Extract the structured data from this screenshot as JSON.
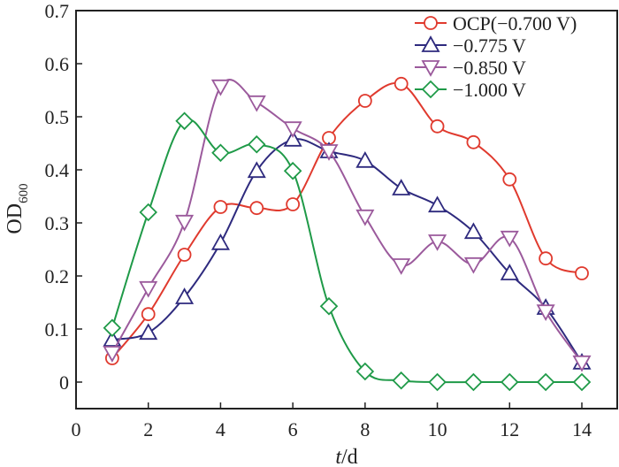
{
  "chart_data": {
    "type": "line",
    "title": "",
    "xlabel": "t/d",
    "xlabel_italic": "t",
    "xlabel_rest": "/d",
    "ylabel": "OD600",
    "ylabel_main": "OD",
    "ylabel_sub": "600",
    "xlim": [
      0,
      15
    ],
    "ylim": [
      -0.05,
      0.7
    ],
    "xticks": [
      0,
      2,
      4,
      6,
      8,
      10,
      12,
      14
    ],
    "xtick_labels": [
      "0",
      "2",
      "4",
      "6",
      "8",
      "10",
      "12",
      "14"
    ],
    "yticks": [
      0,
      0.1,
      0.2,
      0.3,
      0.4,
      0.5,
      0.6,
      0.7
    ],
    "ytick_labels": [
      "0",
      "0.1",
      "0.2",
      "0.3",
      "0.4",
      "0.5",
      "0.6",
      "0.7"
    ],
    "grid": false,
    "legend_position": "top-right",
    "x": [
      1,
      2,
      3,
      4,
      5,
      6,
      7,
      8,
      9,
      10,
      11,
      12,
      13,
      14
    ],
    "series": [
      {
        "name": "OCP(−0.700 V)",
        "marker": "circle",
        "color": "#e03a2e",
        "values": [
          0.045,
          0.128,
          0.24,
          0.33,
          0.328,
          0.335,
          0.46,
          0.53,
          0.562,
          0.482,
          0.452,
          0.382,
          0.233,
          0.205
        ]
      },
      {
        "name": "−0.775 V",
        "marker": "triangle-up",
        "color": "#2e2a7e",
        "values": [
          0.08,
          0.093,
          0.16,
          0.262,
          0.398,
          0.457,
          0.435,
          0.417,
          0.365,
          0.333,
          0.283,
          0.205,
          0.14,
          0.037
        ]
      },
      {
        "name": "−0.850 V",
        "marker": "triangle-down",
        "color": "#9b5a9c",
        "values": [
          0.055,
          0.177,
          0.302,
          0.557,
          0.527,
          0.478,
          0.435,
          0.312,
          0.22,
          0.265,
          0.222,
          0.272,
          0.133,
          0.037
        ]
      },
      {
        "name": "−1.000 V",
        "marker": "diamond",
        "color": "#1f9a48",
        "values": [
          0.102,
          0.32,
          0.492,
          0.432,
          0.448,
          0.398,
          0.143,
          0.02,
          0.003,
          0.0,
          0.0,
          0.0,
          0.0,
          0.0
        ]
      }
    ]
  }
}
